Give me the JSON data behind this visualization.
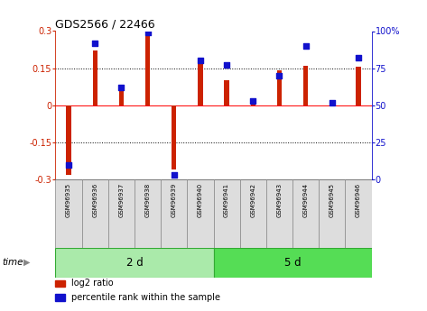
{
  "title": "GDS2566 / 22466",
  "samples": [
    "GSM96935",
    "GSM96936",
    "GSM96937",
    "GSM96938",
    "GSM96939",
    "GSM96940",
    "GSM96941",
    "GSM96942",
    "GSM96943",
    "GSM96944",
    "GSM96945",
    "GSM96946"
  ],
  "log2_ratio": [
    -0.28,
    0.22,
    0.08,
    0.3,
    -0.26,
    0.17,
    0.1,
    0.02,
    0.14,
    0.16,
    0.01,
    0.155
  ],
  "percentile_rank": [
    10,
    92,
    62,
    99,
    3,
    80,
    77,
    53,
    70,
    90,
    52,
    82
  ],
  "groups": [
    {
      "label": "2 d",
      "start": 0,
      "end": 6,
      "color": "#aaeaaa"
    },
    {
      "label": "5 d",
      "start": 6,
      "end": 12,
      "color": "#55dd55"
    }
  ],
  "ylim": [
    -0.3,
    0.3
  ],
  "right_ylim": [
    0,
    100
  ],
  "right_yticks": [
    0,
    25,
    50,
    75,
    100
  ],
  "right_yticklabels": [
    "0",
    "25",
    "50",
    "75",
    "100%"
  ],
  "left_yticks": [
    -0.3,
    -0.15,
    0.0,
    0.15,
    0.3
  ],
  "left_yticklabels": [
    "-0.3",
    "-0.15",
    "0",
    "0.15",
    "0.3"
  ],
  "bar_color": "#cc2200",
  "dot_color": "#1111cc",
  "bg_color": "white",
  "legend_items": [
    "log2 ratio",
    "percentile rank within the sample"
  ],
  "time_label": "time",
  "fig_width": 4.73,
  "fig_height": 3.45,
  "dpi": 100
}
